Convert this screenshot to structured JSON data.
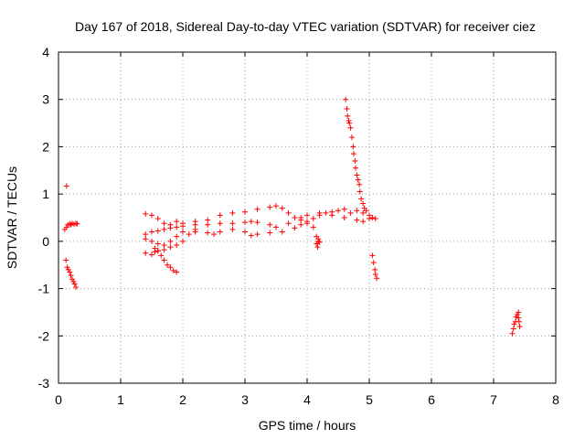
{
  "chart_data": {
    "type": "scatter",
    "title": "Day 167 of 2018, Sidereal Day-to-day VTEC variation (SDTVAR) for receiver ciez",
    "xlabel": "GPS time / hours",
    "ylabel": "SDTVAR / TECUs",
    "xlim": [
      0,
      8
    ],
    "ylim": [
      -3,
      4
    ],
    "xticks": [
      0,
      1,
      2,
      3,
      4,
      5,
      6,
      7,
      8
    ],
    "yticks": [
      -3,
      -2,
      -1,
      0,
      1,
      2,
      3,
      4
    ],
    "grid": true,
    "marker": "+",
    "marker_color": "#ff0000",
    "segments": [
      {
        "name": "early-outlier",
        "points": [
          [
            0.13,
            1.17
          ]
        ]
      },
      {
        "name": "early-upper",
        "points": [
          [
            0.1,
            0.25
          ],
          [
            0.13,
            0.3
          ],
          [
            0.15,
            0.35
          ],
          [
            0.18,
            0.37
          ],
          [
            0.2,
            0.35
          ],
          [
            0.22,
            0.38
          ],
          [
            0.25,
            0.36
          ],
          [
            0.28,
            0.38
          ],
          [
            0.3,
            0.37
          ]
        ]
      },
      {
        "name": "early-lower",
        "points": [
          [
            0.12,
            -0.4
          ],
          [
            0.14,
            -0.55
          ],
          [
            0.16,
            -0.6
          ],
          [
            0.18,
            -0.65
          ],
          [
            0.2,
            -0.72
          ],
          [
            0.22,
            -0.8
          ],
          [
            0.24,
            -0.85
          ],
          [
            0.26,
            -0.9
          ],
          [
            0.28,
            -0.97
          ]
        ]
      },
      {
        "name": "band-upper",
        "points": [
          [
            1.4,
            0.58
          ],
          [
            1.5,
            0.55
          ],
          [
            1.6,
            0.48
          ],
          [
            1.7,
            0.38
          ],
          [
            1.8,
            0.35
          ],
          [
            1.9,
            0.42
          ],
          [
            2.0,
            0.38
          ],
          [
            2.2,
            0.42
          ],
          [
            2.4,
            0.45
          ],
          [
            2.6,
            0.55
          ],
          [
            2.8,
            0.6
          ],
          [
            3.0,
            0.62
          ],
          [
            3.2,
            0.68
          ],
          [
            3.4,
            0.72
          ],
          [
            3.5,
            0.75
          ],
          [
            3.6,
            0.7
          ],
          [
            3.7,
            0.6
          ],
          [
            3.8,
            0.5
          ],
          [
            3.9,
            0.45
          ],
          [
            4.0,
            0.42
          ],
          [
            4.1,
            0.48
          ],
          [
            4.2,
            0.55
          ],
          [
            4.3,
            0.6
          ],
          [
            4.4,
            0.62
          ],
          [
            4.5,
            0.65
          ],
          [
            4.6,
            0.68
          ],
          [
            4.7,
            0.6
          ],
          [
            4.8,
            0.65
          ],
          [
            4.9,
            0.6
          ],
          [
            5.0,
            0.55
          ],
          [
            5.05,
            0.5
          ],
          [
            5.1,
            0.48
          ]
        ]
      },
      {
        "name": "band-middle",
        "points": [
          [
            1.4,
            0.15
          ],
          [
            1.5,
            0.2
          ],
          [
            1.6,
            0.22
          ],
          [
            1.7,
            0.25
          ],
          [
            1.8,
            0.28
          ],
          [
            1.9,
            0.3
          ],
          [
            2.0,
            0.32
          ],
          [
            2.2,
            0.35
          ],
          [
            2.4,
            0.35
          ],
          [
            2.6,
            0.38
          ],
          [
            2.8,
            0.38
          ],
          [
            3.0,
            0.4
          ],
          [
            3.1,
            0.42
          ],
          [
            3.2,
            0.4
          ],
          [
            3.4,
            0.35
          ],
          [
            3.5,
            0.3
          ],
          [
            3.7,
            0.38
          ],
          [
            3.9,
            0.5
          ],
          [
            4.0,
            0.55
          ],
          [
            4.2,
            0.6
          ],
          [
            4.4,
            0.55
          ],
          [
            4.6,
            0.5
          ],
          [
            4.8,
            0.45
          ],
          [
            4.9,
            0.42
          ],
          [
            5.0,
            0.48
          ]
        ]
      },
      {
        "name": "band-lower",
        "points": [
          [
            1.4,
            0.05
          ],
          [
            1.5,
            0.0
          ],
          [
            1.6,
            -0.05
          ],
          [
            1.7,
            -0.08
          ],
          [
            1.8,
            0.0
          ],
          [
            1.9,
            0.1
          ],
          [
            2.0,
            0.2
          ],
          [
            2.2,
            0.25
          ],
          [
            2.4,
            0.18
          ],
          [
            2.5,
            0.15
          ],
          [
            2.6,
            0.2
          ],
          [
            2.8,
            0.25
          ],
          [
            3.0,
            0.2
          ],
          [
            3.1,
            0.12
          ],
          [
            3.2,
            0.15
          ],
          [
            3.4,
            0.18
          ],
          [
            3.6,
            0.2
          ],
          [
            3.8,
            0.28
          ],
          [
            3.9,
            0.35
          ],
          [
            4.0,
            0.38
          ],
          [
            4.1,
            0.3
          ],
          [
            4.15,
            0.1
          ],
          [
            4.18,
            0.0
          ]
        ]
      },
      {
        "name": "drop-tail",
        "points": [
          [
            4.15,
            -0.05
          ],
          [
            4.17,
            -0.12
          ],
          [
            4.18,
            0.05
          ],
          [
            4.2,
            -0.02
          ]
        ]
      },
      {
        "name": "band-falling",
        "points": [
          [
            1.4,
            -0.25
          ],
          [
            1.5,
            -0.28
          ],
          [
            1.55,
            -0.22
          ],
          [
            1.6,
            -0.2
          ],
          [
            1.65,
            -0.3
          ],
          [
            1.7,
            -0.4
          ],
          [
            1.75,
            -0.5
          ],
          [
            1.8,
            -0.55
          ],
          [
            1.85,
            -0.62
          ],
          [
            1.9,
            -0.65
          ]
        ]
      },
      {
        "name": "band-falling-b",
        "points": [
          [
            1.55,
            -0.15
          ],
          [
            1.6,
            -0.2
          ],
          [
            1.7,
            -0.18
          ],
          [
            1.8,
            -0.12
          ],
          [
            1.9,
            -0.08
          ],
          [
            2.0,
            0.0
          ],
          [
            2.1,
            0.15
          ],
          [
            2.2,
            0.2
          ]
        ]
      },
      {
        "name": "spike-decline",
        "points": [
          [
            4.62,
            3.0
          ],
          [
            4.64,
            2.8
          ],
          [
            4.65,
            2.65
          ],
          [
            4.67,
            2.55
          ],
          [
            4.68,
            2.5
          ],
          [
            4.7,
            2.4
          ],
          [
            4.72,
            2.2
          ],
          [
            4.74,
            2.0
          ],
          [
            4.75,
            1.85
          ],
          [
            4.77,
            1.7
          ],
          [
            4.78,
            1.55
          ],
          [
            4.8,
            1.4
          ],
          [
            4.82,
            1.3
          ],
          [
            4.84,
            1.2
          ],
          [
            4.85,
            1.05
          ],
          [
            4.87,
            0.9
          ],
          [
            4.9,
            0.8
          ],
          [
            4.92,
            0.7
          ],
          [
            4.95,
            0.65
          ]
        ]
      },
      {
        "name": "late-drop",
        "points": [
          [
            5.05,
            -0.3
          ],
          [
            5.07,
            -0.45
          ],
          [
            5.09,
            -0.6
          ],
          [
            5.1,
            -0.7
          ],
          [
            5.12,
            -0.78
          ]
        ]
      },
      {
        "name": "late-cluster",
        "points": [
          [
            7.3,
            -1.95
          ],
          [
            7.32,
            -1.85
          ],
          [
            7.33,
            -1.75
          ],
          [
            7.35,
            -1.7
          ],
          [
            7.36,
            -1.6
          ],
          [
            7.38,
            -1.55
          ],
          [
            7.4,
            -1.62
          ],
          [
            7.41,
            -1.7
          ],
          [
            7.42,
            -1.8
          ],
          [
            7.4,
            -1.5
          ]
        ]
      }
    ]
  }
}
